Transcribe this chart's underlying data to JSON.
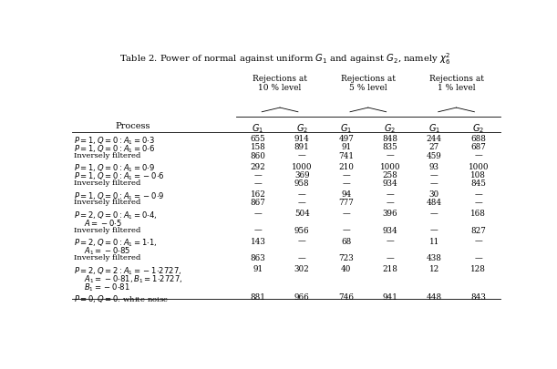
{
  "title": "Table 2. Power of normal against uniform $G_1$ and against $G_2$, namely $\\chi^2_6$",
  "col_headers_top": [
    "Rejections at\n10 % level",
    "Rejections at\n5 % level",
    "Rejections at\n1 % level"
  ],
  "col_headers_bot": [
    "$G_1$",
    "$G_2$",
    "$G_1$",
    "$G_2$",
    "$G_1$",
    "$G_2$"
  ],
  "process_col": "Process",
  "rows": [
    {
      "label": "$P = 1, Q = 0: A_1 = 0{\\cdot}3$",
      "vals": [
        "655",
        "914",
        "497",
        "848",
        "244",
        "688"
      ],
      "cont": false,
      "spacer": false
    },
    {
      "label": "$P = 1, Q = 0: A_1 = 0{\\cdot}6$",
      "vals": [
        "158",
        "891",
        "91",
        "835",
        "27",
        "687"
      ],
      "cont": false,
      "spacer": false
    },
    {
      "label": "Inversely filtered",
      "vals": [
        "860",
        "—",
        "741",
        "—",
        "459",
        "—"
      ],
      "cont": false,
      "spacer": false
    },
    {
      "label": "",
      "vals": [
        "",
        "",
        "",
        "",
        "",
        ""
      ],
      "cont": false,
      "spacer": true
    },
    {
      "label": "$P = 1, Q = 0: A_1 = 0{\\cdot}9$",
      "vals": [
        "292",
        "1000",
        "210",
        "1000",
        "93",
        "1000"
      ],
      "cont": false,
      "spacer": false
    },
    {
      "label": "$P = 1, Q = 0: A_1 = -0{\\cdot}6$",
      "vals": [
        "—",
        "369",
        "—",
        "258",
        "—",
        "108"
      ],
      "cont": false,
      "spacer": false
    },
    {
      "label": "Inversely filtered",
      "vals": [
        "—",
        "958",
        "—",
        "934",
        "—",
        "845"
      ],
      "cont": false,
      "spacer": false
    },
    {
      "label": "",
      "vals": [
        "",
        "",
        "",
        "",
        "",
        ""
      ],
      "cont": false,
      "spacer": true
    },
    {
      "label": "$P = 1, Q = 0: A_1 = -0{\\cdot}9$",
      "vals": [
        "162",
        "—",
        "94",
        "—",
        "30",
        "—"
      ],
      "cont": false,
      "spacer": false
    },
    {
      "label": "Inversely filtered",
      "vals": [
        "867",
        "—",
        "777",
        "—",
        "484",
        "—"
      ],
      "cont": false,
      "spacer": false
    },
    {
      "label": "",
      "vals": [
        "",
        "",
        "",
        "",
        "",
        ""
      ],
      "cont": false,
      "spacer": true
    },
    {
      "label": "$P = 2, Q = 0: A_1 = 0{\\cdot}4,$",
      "vals": [
        "—",
        "504",
        "—",
        "396",
        "—",
        "168"
      ],
      "cont": false,
      "spacer": false
    },
    {
      "label": "$A = -0{\\cdot}5$",
      "vals": [
        "",
        "",
        "",
        "",
        "",
        ""
      ],
      "cont": true,
      "spacer": false
    },
    {
      "label": "Inversely filtered",
      "vals": [
        "—",
        "956",
        "—",
        "934",
        "—",
        "827"
      ],
      "cont": false,
      "spacer": false
    },
    {
      "label": "",
      "vals": [
        "",
        "",
        "",
        "",
        "",
        ""
      ],
      "cont": false,
      "spacer": true
    },
    {
      "label": "$P = 2, Q = 0: A_1 = 1{\\cdot}1,$",
      "vals": [
        "143",
        "—",
        "68",
        "—",
        "11",
        "—"
      ],
      "cont": false,
      "spacer": false
    },
    {
      "label": "$A_1 = -0{\\cdot}85$",
      "vals": [
        "",
        "",
        "",
        "",
        "",
        ""
      ],
      "cont": true,
      "spacer": false
    },
    {
      "label": "Inversely filtered",
      "vals": [
        "863",
        "—",
        "723",
        "—",
        "438",
        "—"
      ],
      "cont": false,
      "spacer": false
    },
    {
      "label": "",
      "vals": [
        "",
        "",
        "",
        "",
        "",
        ""
      ],
      "cont": false,
      "spacer": true
    },
    {
      "label": "$P = 2, Q = 2: A_1 = -1{\\cdot}2727,$",
      "vals": [
        "91",
        "302",
        "40",
        "218",
        "12",
        "128"
      ],
      "cont": false,
      "spacer": false
    },
    {
      "label": "$A_1 = -0{\\cdot}81, B_1 = 1{\\cdot}2727,$",
      "vals": [
        "",
        "",
        "",
        "",
        "",
        ""
      ],
      "cont": true,
      "spacer": false
    },
    {
      "label": "$B_1 = -0{\\cdot}81$",
      "vals": [
        "",
        "",
        "",
        "",
        "",
        ""
      ],
      "cont": true,
      "spacer": false
    },
    {
      "label": "",
      "vals": [
        "",
        "",
        "",
        "",
        "",
        ""
      ],
      "cont": false,
      "spacer": true
    },
    {
      "label": "$P = 0, Q = 0$: white noise",
      "vals": [
        "881",
        "966",
        "746",
        "941",
        "448",
        "843"
      ],
      "cont": false,
      "spacer": false
    }
  ]
}
